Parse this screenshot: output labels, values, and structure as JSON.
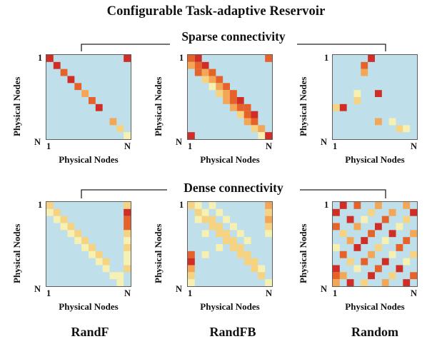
{
  "title": "Configurable Task-adaptive Reservoir",
  "sections": {
    "sparse": "Sparse connectivity",
    "dense": "Dense connectivity"
  },
  "axis": {
    "xlabel": "Physical Nodes",
    "ylabel": "Physical Nodes",
    "tick_start": "1",
    "tick_end": "N"
  },
  "columns": [
    "RandF",
    "RandFB",
    "Random"
  ],
  "colors": {
    "background": "#bfe0ea",
    "scale": [
      "#f7f0b3",
      "#f6d383",
      "#f3a656",
      "#e5632b",
      "#cf2d25"
    ]
  },
  "chart_data": [
    {
      "type": "heatmap",
      "name": "sparse-randf",
      "size": 12,
      "cells": [
        [
          0,
          0,
          4
        ],
        [
          1,
          1,
          4
        ],
        [
          2,
          2,
          3
        ],
        [
          3,
          3,
          4
        ],
        [
          4,
          4,
          3
        ],
        [
          5,
          5,
          2
        ],
        [
          6,
          6,
          3
        ],
        [
          7,
          7,
          4
        ],
        [
          9,
          9,
          2
        ],
        [
          10,
          10,
          1
        ],
        [
          11,
          11,
          0
        ],
        [
          0,
          11,
          4
        ]
      ]
    },
    {
      "type": "heatmap",
      "name": "sparse-randfb",
      "size": 12,
      "cells": [
        [
          0,
          0,
          3
        ],
        [
          0,
          1,
          4
        ],
        [
          1,
          0,
          2
        ],
        [
          1,
          1,
          3
        ],
        [
          1,
          2,
          4
        ],
        [
          2,
          1,
          3
        ],
        [
          2,
          2,
          2
        ],
        [
          2,
          3,
          3
        ],
        [
          3,
          2,
          1
        ],
        [
          3,
          3,
          2
        ],
        [
          3,
          4,
          3
        ],
        [
          4,
          3,
          0
        ],
        [
          4,
          4,
          2
        ],
        [
          4,
          5,
          3
        ],
        [
          5,
          4,
          1
        ],
        [
          5,
          5,
          2
        ],
        [
          5,
          6,
          3
        ],
        [
          6,
          5,
          2
        ],
        [
          6,
          6,
          3
        ],
        [
          6,
          7,
          4
        ],
        [
          7,
          6,
          2
        ],
        [
          7,
          7,
          3
        ],
        [
          7,
          8,
          3
        ],
        [
          8,
          7,
          1
        ],
        [
          8,
          8,
          3
        ],
        [
          8,
          9,
          4
        ],
        [
          9,
          8,
          2
        ],
        [
          9,
          9,
          3
        ],
        [
          10,
          9,
          1
        ],
        [
          10,
          10,
          2
        ],
        [
          11,
          10,
          0
        ],
        [
          0,
          11,
          3
        ],
        [
          11,
          11,
          4
        ],
        [
          11,
          0,
          4
        ]
      ]
    },
    {
      "type": "heatmap",
      "name": "sparse-random",
      "size": 12,
      "cells": [
        [
          0,
          5,
          4
        ],
        [
          1,
          4,
          3
        ],
        [
          2,
          4,
          2
        ],
        [
          5,
          6,
          4
        ],
        [
          6,
          3,
          1
        ],
        [
          7,
          0,
          1
        ],
        [
          7,
          1,
          4
        ],
        [
          9,
          8,
          0
        ],
        [
          10,
          9,
          1
        ],
        [
          10,
          10,
          0
        ],
        [
          5,
          3,
          0
        ],
        [
          9,
          6,
          2
        ]
      ]
    },
    {
      "type": "heatmap",
      "name": "dense-randf",
      "size": 12,
      "cells": [
        [
          0,
          0,
          1
        ],
        [
          1,
          0,
          0
        ],
        [
          1,
          1,
          1
        ],
        [
          2,
          1,
          0
        ],
        [
          2,
          2,
          1
        ],
        [
          3,
          2,
          0
        ],
        [
          3,
          3,
          1
        ],
        [
          4,
          3,
          0
        ],
        [
          4,
          4,
          1
        ],
        [
          5,
          4,
          0
        ],
        [
          5,
          5,
          1
        ],
        [
          6,
          5,
          0
        ],
        [
          6,
          6,
          1
        ],
        [
          7,
          6,
          0
        ],
        [
          7,
          7,
          1
        ],
        [
          8,
          7,
          0
        ],
        [
          8,
          8,
          1
        ],
        [
          9,
          8,
          0
        ],
        [
          10,
          9,
          0
        ],
        [
          10,
          10,
          0
        ],
        [
          11,
          10,
          0
        ],
        [
          0,
          11,
          1
        ],
        [
          1,
          11,
          4
        ],
        [
          2,
          11,
          3
        ],
        [
          3,
          11,
          3
        ],
        [
          4,
          11,
          1
        ],
        [
          5,
          11,
          0
        ],
        [
          6,
          11,
          1
        ],
        [
          7,
          11,
          0
        ],
        [
          8,
          11,
          0
        ],
        [
          9,
          11,
          1
        ]
      ]
    },
    {
      "type": "heatmap",
      "name": "dense-randfb",
      "size": 12,
      "cells": [
        [
          0,
          0,
          1
        ],
        [
          0,
          1,
          0
        ],
        [
          0,
          3,
          0
        ],
        [
          1,
          1,
          1
        ],
        [
          1,
          2,
          0
        ],
        [
          1,
          4,
          0
        ],
        [
          2,
          1,
          0
        ],
        [
          2,
          2,
          1
        ],
        [
          2,
          3,
          1
        ],
        [
          2,
          5,
          0
        ],
        [
          3,
          3,
          1
        ],
        [
          3,
          4,
          1
        ],
        [
          3,
          6,
          0
        ],
        [
          4,
          2,
          0
        ],
        [
          4,
          4,
          1
        ],
        [
          4,
          5,
          1
        ],
        [
          4,
          7,
          0
        ],
        [
          5,
          5,
          1
        ],
        [
          5,
          6,
          1
        ],
        [
          5,
          8,
          0
        ],
        [
          6,
          4,
          0
        ],
        [
          6,
          6,
          1
        ],
        [
          6,
          7,
          1
        ],
        [
          7,
          7,
          1
        ],
        [
          7,
          8,
          1
        ],
        [
          7,
          2,
          0
        ],
        [
          8,
          8,
          1
        ],
        [
          8,
          9,
          1
        ],
        [
          9,
          9,
          1
        ],
        [
          9,
          10,
          0
        ],
        [
          10,
          10,
          1
        ],
        [
          11,
          11,
          0
        ],
        [
          0,
          11,
          2
        ],
        [
          1,
          11,
          1
        ],
        [
          2,
          11,
          2
        ],
        [
          3,
          11,
          1
        ],
        [
          4,
          11,
          0
        ],
        [
          7,
          0,
          3
        ],
        [
          8,
          0,
          4
        ],
        [
          9,
          0,
          2
        ],
        [
          10,
          0,
          1
        ],
        [
          11,
          0,
          0
        ]
      ]
    },
    {
      "type": "heatmap",
      "name": "dense-random",
      "size": 12,
      "cells": [
        [
          0,
          1,
          4
        ],
        [
          0,
          3,
          3
        ],
        [
          0,
          6,
          2
        ],
        [
          0,
          10,
          2
        ],
        [
          1,
          0,
          4
        ],
        [
          1,
          5,
          1
        ],
        [
          1,
          8,
          2
        ],
        [
          1,
          11,
          4
        ],
        [
          2,
          2,
          4
        ],
        [
          2,
          4,
          0
        ],
        [
          2,
          7,
          3
        ],
        [
          2,
          10,
          1
        ],
        [
          3,
          0,
          3
        ],
        [
          3,
          3,
          2
        ],
        [
          3,
          6,
          4
        ],
        [
          3,
          9,
          0
        ],
        [
          4,
          1,
          1
        ],
        [
          4,
          5,
          3
        ],
        [
          4,
          8,
          4
        ],
        [
          4,
          11,
          2
        ],
        [
          5,
          2,
          2
        ],
        [
          5,
          4,
          4
        ],
        [
          5,
          7,
          0
        ],
        [
          5,
          10,
          3
        ],
        [
          6,
          0,
          0
        ],
        [
          6,
          3,
          4
        ],
        [
          6,
          6,
          1
        ],
        [
          6,
          9,
          3
        ],
        [
          7,
          1,
          3
        ],
        [
          7,
          5,
          2
        ],
        [
          7,
          8,
          0
        ],
        [
          7,
          11,
          1
        ],
        [
          8,
          2,
          1
        ],
        [
          8,
          4,
          3
        ],
        [
          8,
          7,
          4
        ],
        [
          8,
          10,
          0
        ],
        [
          9,
          0,
          4
        ],
        [
          9,
          3,
          0
        ],
        [
          9,
          6,
          3
        ],
        [
          9,
          9,
          4
        ],
        [
          10,
          1,
          2
        ],
        [
          10,
          5,
          4
        ],
        [
          10,
          8,
          1
        ],
        [
          10,
          11,
          3
        ],
        [
          11,
          2,
          4
        ],
        [
          11,
          4,
          1
        ],
        [
          11,
          7,
          2
        ],
        [
          11,
          10,
          4
        ],
        [
          10,
          0,
          3
        ],
        [
          11,
          0,
          2
        ]
      ]
    }
  ]
}
